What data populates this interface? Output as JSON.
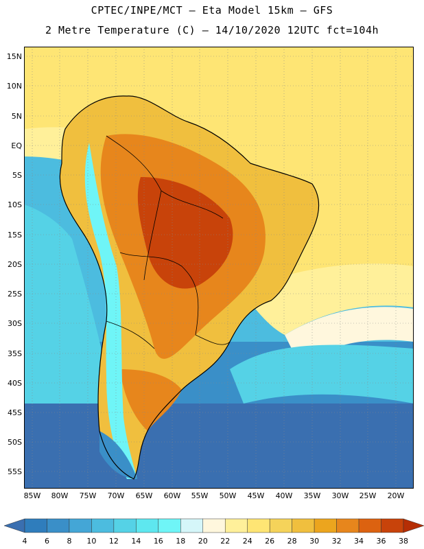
{
  "header": {
    "line1": "CPTEC/INPE/MCT  –   Eta Model 15km  –  GFS",
    "line2": "2 Metre Temperature (C) – 14/10/2020 12UTC fct=104h"
  },
  "map": {
    "lat_labels": [
      "15N",
      "10N",
      "5N",
      "EQ",
      "5S",
      "10S",
      "15S",
      "20S",
      "25S",
      "30S",
      "35S",
      "40S",
      "45S",
      "50S",
      "55S"
    ],
    "lon_labels": [
      "85W",
      "80W",
      "75W",
      "70W",
      "65W",
      "60W",
      "55W",
      "50W",
      "45W",
      "40W",
      "35W",
      "30W",
      "25W",
      "20W"
    ]
  },
  "legend": {
    "labels": [
      "4",
      "6",
      "8",
      "10",
      "12",
      "14",
      "16",
      "18",
      "20",
      "22",
      "24",
      "26",
      "28",
      "30",
      "32",
      "34",
      "36",
      "38"
    ],
    "colors": [
      "#3a6fb0",
      "#2f7dbc",
      "#3a8fc8",
      "#44a6d6",
      "#4cbcdf",
      "#55d2e6",
      "#5ee7ef",
      "#6ff5f7",
      "#d5f6f9",
      "#fff7dd",
      "#fff09a",
      "#fee574",
      "#f5d35a",
      "#f0bf3e",
      "#eca51e",
      "#e7861c",
      "#dc6210",
      "#c8430a",
      "#b52e05"
    ]
  }
}
